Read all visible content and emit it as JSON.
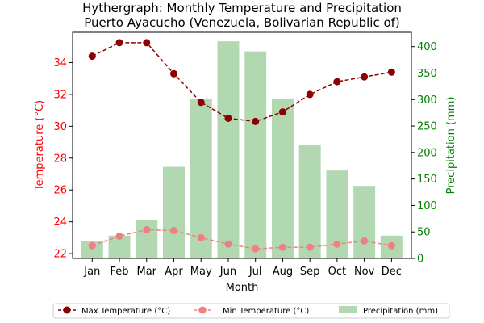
{
  "chart_data": {
    "type": "bar+line",
    "title": "Hythergraph: Monthly Temperature and Precipitation",
    "subtitle": "Puerto Ayacucho (Venezuela, Bolivarian Republic of)",
    "xlabel": "Month",
    "ylabel_left": "Temperature (°C)",
    "ylabel_right": "Precipitation (mm)",
    "categories": [
      "Jan",
      "Feb",
      "Mar",
      "Apr",
      "May",
      "Jun",
      "Jul",
      "Aug",
      "Sep",
      "Oct",
      "Nov",
      "Dec"
    ],
    "ylim_left": [
      21.7,
      35.9
    ],
    "ylim_right": [
      0,
      427
    ],
    "yticks_left": [
      22,
      24,
      26,
      28,
      30,
      32,
      34
    ],
    "yticks_right": [
      0,
      50,
      100,
      150,
      200,
      250,
      300,
      350,
      400
    ],
    "grid": false,
    "legend_placement": "bottom-center",
    "series": [
      {
        "name": "Max Temperature (°C)",
        "axis": "left",
        "kind": "line",
        "color": "#8b0000",
        "values": [
          34.4,
          35.25,
          35.25,
          33.3,
          31.5,
          30.5,
          30.3,
          30.9,
          32.0,
          32.8,
          33.1,
          33.4
        ]
      },
      {
        "name": "Min Temperature (°C)",
        "axis": "left",
        "kind": "line",
        "color": "#f08080",
        "values": [
          22.5,
          23.1,
          23.5,
          23.45,
          23.0,
          22.6,
          22.3,
          22.4,
          22.4,
          22.6,
          22.8,
          22.5
        ]
      },
      {
        "name": "Precipitation (mm)",
        "axis": "right",
        "kind": "bar",
        "color": "#b2d8b2",
        "values": [
          32,
          43,
          72,
          173,
          301,
          410,
          391,
          302,
          215,
          166,
          137,
          43
        ]
      }
    ],
    "colors": {
      "left_axis": "#ff0000",
      "right_axis": "#008000"
    }
  }
}
